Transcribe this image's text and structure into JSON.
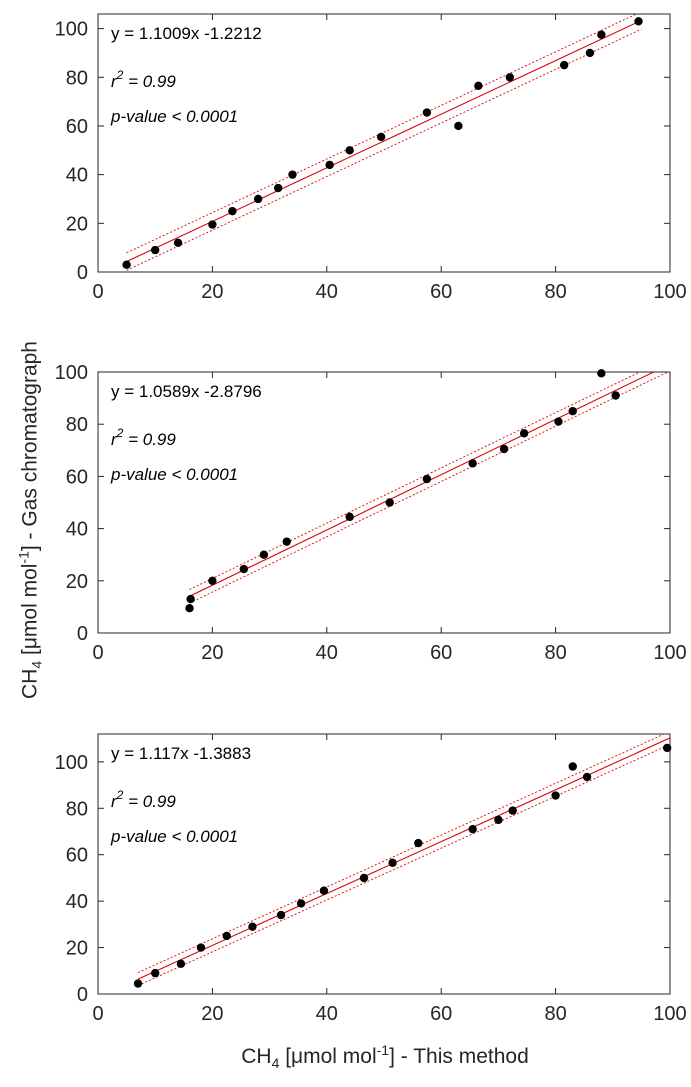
{
  "figure": {
    "xlabel": {
      "main": "CH",
      "sub": "4",
      "rest_before_sup": " [μmol mol",
      "sup": "-1",
      "rest_after_sup": "] - This method"
    },
    "ylabel": {
      "main": "CH",
      "sub": "4",
      "rest_before_sup": " [μmol mol",
      "sup": "-1",
      "rest_after_sup": "] - Gas chromatograph"
    }
  },
  "chart_data": [
    {
      "type": "scatter",
      "xlim": [
        0,
        100
      ],
      "ylim": [
        0,
        106
      ],
      "xticks": [
        "0",
        "20",
        "40",
        "60",
        "80",
        "100"
      ],
      "yticks": [
        "0",
        "20",
        "40",
        "60",
        "80",
        "100"
      ],
      "equation": "y = 1.1009x -1.2212",
      "r2_prefix": "r",
      "r2_sup": "2",
      "r2_value": " = 0.99",
      "pvalue": "p-value < 0.0001",
      "fit": {
        "slope": 1.1009,
        "intercept": -1.2212,
        "x_range": [
          5,
          95
        ],
        "band": 3.6
      },
      "marker_color": "#000000",
      "fit_color": "#e00000",
      "x": [
        5,
        10,
        14,
        20,
        23.5,
        28,
        31.5,
        34,
        40.5,
        44,
        49.5,
        57.5,
        63,
        66.5,
        72,
        81.5,
        86,
        88,
        94.5
      ],
      "y": [
        3,
        9,
        12,
        19.5,
        25,
        30,
        34.5,
        40,
        44,
        50,
        55.5,
        65.5,
        60,
        76.5,
        80,
        85,
        90,
        97.5,
        103
      ]
    },
    {
      "type": "scatter",
      "xlim": [
        0,
        100
      ],
      "ylim": [
        0,
        100
      ],
      "xticks": [
        "0",
        "20",
        "40",
        "60",
        "80",
        "100"
      ],
      "yticks": [
        "0",
        "20",
        "40",
        "60",
        "80",
        "100"
      ],
      "equation": "y = 1.0589x -2.8796",
      "r2_prefix": "r",
      "r2_sup": "2",
      "r2_value": " = 0.99",
      "pvalue": "p-value < 0.0001",
      "fit": {
        "slope": 1.0589,
        "intercept": -2.8796,
        "x_range": [
          16,
          100
        ],
        "band": 2.6
      },
      "marker_color": "#000000",
      "fit_color": "#e00000",
      "x": [
        16,
        16.2,
        20,
        25.5,
        29,
        33,
        44,
        51,
        57.5,
        65.5,
        71,
        74.5,
        80.5,
        83,
        88,
        90.5
      ],
      "y": [
        9.5,
        13,
        20,
        24.5,
        30,
        35,
        44.5,
        50,
        59,
        65,
        70.5,
        76.5,
        81,
        85,
        99.5,
        91
      ]
    },
    {
      "type": "scatter",
      "xlim": [
        0,
        100
      ],
      "ylim": [
        0,
        112
      ],
      "xticks": [
        "0",
        "20",
        "40",
        "60",
        "80",
        "100"
      ],
      "yticks": [
        "0",
        "20",
        "40",
        "60",
        "80",
        "100"
      ],
      "equation": "y = 1.117x -1.3883",
      "r2_prefix": "r",
      "r2_sup": "2",
      "r2_value": " = 0.99",
      "pvalue": "p-value < 0.0001",
      "fit": {
        "slope": 1.117,
        "intercept": -1.3883,
        "x_range": [
          7,
          100
        ],
        "band": 2.8
      },
      "marker_color": "#000000",
      "fit_color": "#e00000",
      "x": [
        7,
        10,
        14.5,
        18,
        22.5,
        27,
        32,
        35.5,
        39.5,
        46.5,
        51.5,
        56,
        65.5,
        70,
        72.5,
        80,
        83,
        85.5,
        99.5
      ],
      "y": [
        4.5,
        9,
        13,
        20,
        25,
        29,
        34,
        39,
        44.5,
        50,
        56.5,
        65,
        71,
        75,
        79,
        85.5,
        98,
        93.5,
        106
      ]
    }
  ]
}
